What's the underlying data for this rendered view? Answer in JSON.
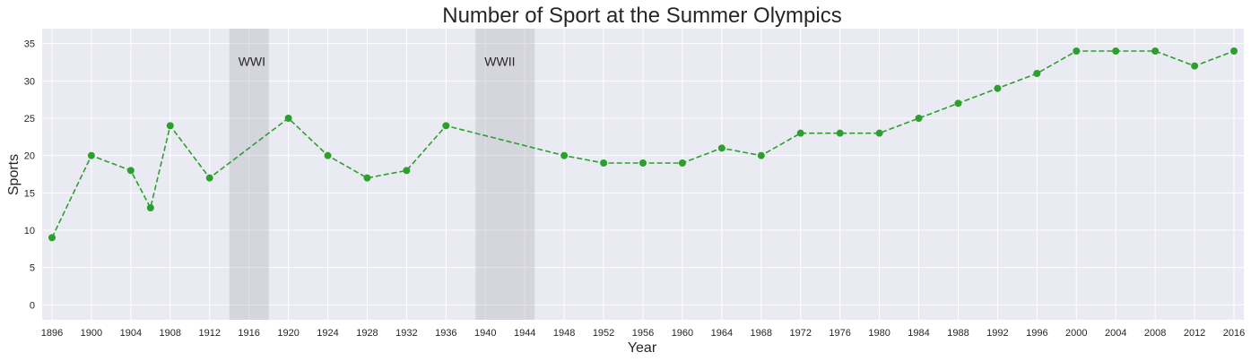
{
  "chart_data": {
    "type": "line",
    "title": "Number of Sport at the Summer Olympics",
    "xlabel": "Year",
    "ylabel": "Sports",
    "x": [
      1896,
      1900,
      1904,
      1906,
      1908,
      1912,
      1920,
      1924,
      1928,
      1932,
      1936,
      1948,
      1952,
      1956,
      1960,
      1964,
      1968,
      1972,
      1976,
      1980,
      1984,
      1988,
      1992,
      1996,
      2000,
      2004,
      2008,
      2012,
      2016
    ],
    "series": [
      {
        "values": [
          9,
          20,
          18,
          13,
          24,
          17,
          25,
          20,
          17,
          18,
          24,
          20,
          19,
          19,
          19,
          21,
          20,
          23,
          23,
          23,
          25,
          27,
          29,
          31,
          34,
          34,
          34,
          32,
          34
        ],
        "color": "#2ca02c",
        "line_style": "dashed",
        "marker": "circle"
      }
    ],
    "xticks": [
      "1896",
      "1900",
      "1904",
      "1908",
      "1912",
      "1916",
      "1920",
      "1924",
      "1928",
      "1932",
      "1936",
      "1940",
      "1944",
      "1948",
      "1952",
      "1956",
      "1960",
      "1964",
      "1968",
      "1972",
      "1976",
      "1980",
      "1984",
      "1988",
      "1992",
      "1996",
      "2000",
      "2004",
      "2008",
      "2012",
      "2016"
    ],
    "yticks": [
      "0",
      "5",
      "10",
      "15",
      "20",
      "25",
      "30",
      "35"
    ],
    "xlim": [
      1895,
      2017
    ],
    "ylim": [
      -2,
      37
    ],
    "grid": true,
    "background_color": "#eaeaf2",
    "bands": [
      {
        "label": "WWI",
        "start": 1914,
        "end": 1918,
        "color": "#b0b0b8"
      },
      {
        "label": "WWII",
        "start": 1939,
        "end": 1945,
        "color": "#b0b0b8"
      }
    ]
  }
}
